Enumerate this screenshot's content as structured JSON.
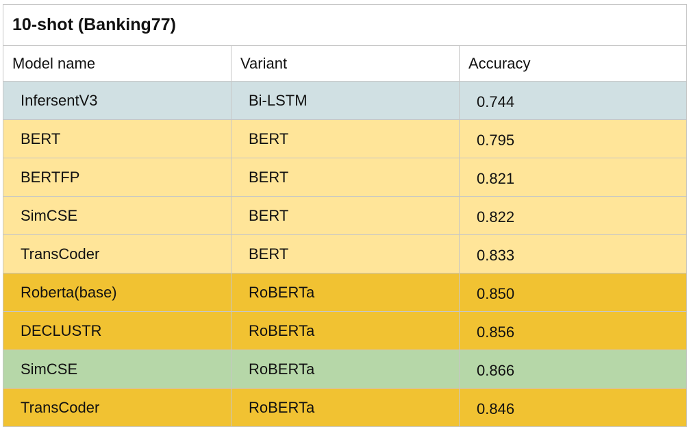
{
  "table": {
    "title": "10-shot (Banking77)",
    "headers": [
      "Model name",
      "Variant",
      "Accuracy"
    ],
    "rows": [
      {
        "model": "InfersentV3",
        "variant": "Bi-LSTM",
        "accuracy": "0.744",
        "color": "#d0e0e3"
      },
      {
        "model": "BERT",
        "variant": "BERT",
        "accuracy": "0.795",
        "color": "#ffe599"
      },
      {
        "model": "BERTFP",
        "variant": "BERT",
        "accuracy": "0.821",
        "color": "#ffe599"
      },
      {
        "model": "SimCSE",
        "variant": "BERT",
        "accuracy": "0.822",
        "color": "#ffe599"
      },
      {
        "model": "TransCoder",
        "variant": "BERT",
        "accuracy": "0.833",
        "color": "#ffe599"
      },
      {
        "model": "Roberta(base)",
        "variant": "RoBERTa",
        "accuracy": "0.850",
        "color": "#f1c232"
      },
      {
        "model": "DECLUSTR",
        "variant": "RoBERTa",
        "accuracy": "0.856",
        "color": "#f1c232"
      },
      {
        "model": "SimCSE",
        "variant": "RoBERTa",
        "accuracy": "0.866",
        "color": "#b6d7a8"
      },
      {
        "model": "TransCoder",
        "variant": "RoBERTa",
        "accuracy": "0.846",
        "color": "#f1c232"
      }
    ]
  }
}
